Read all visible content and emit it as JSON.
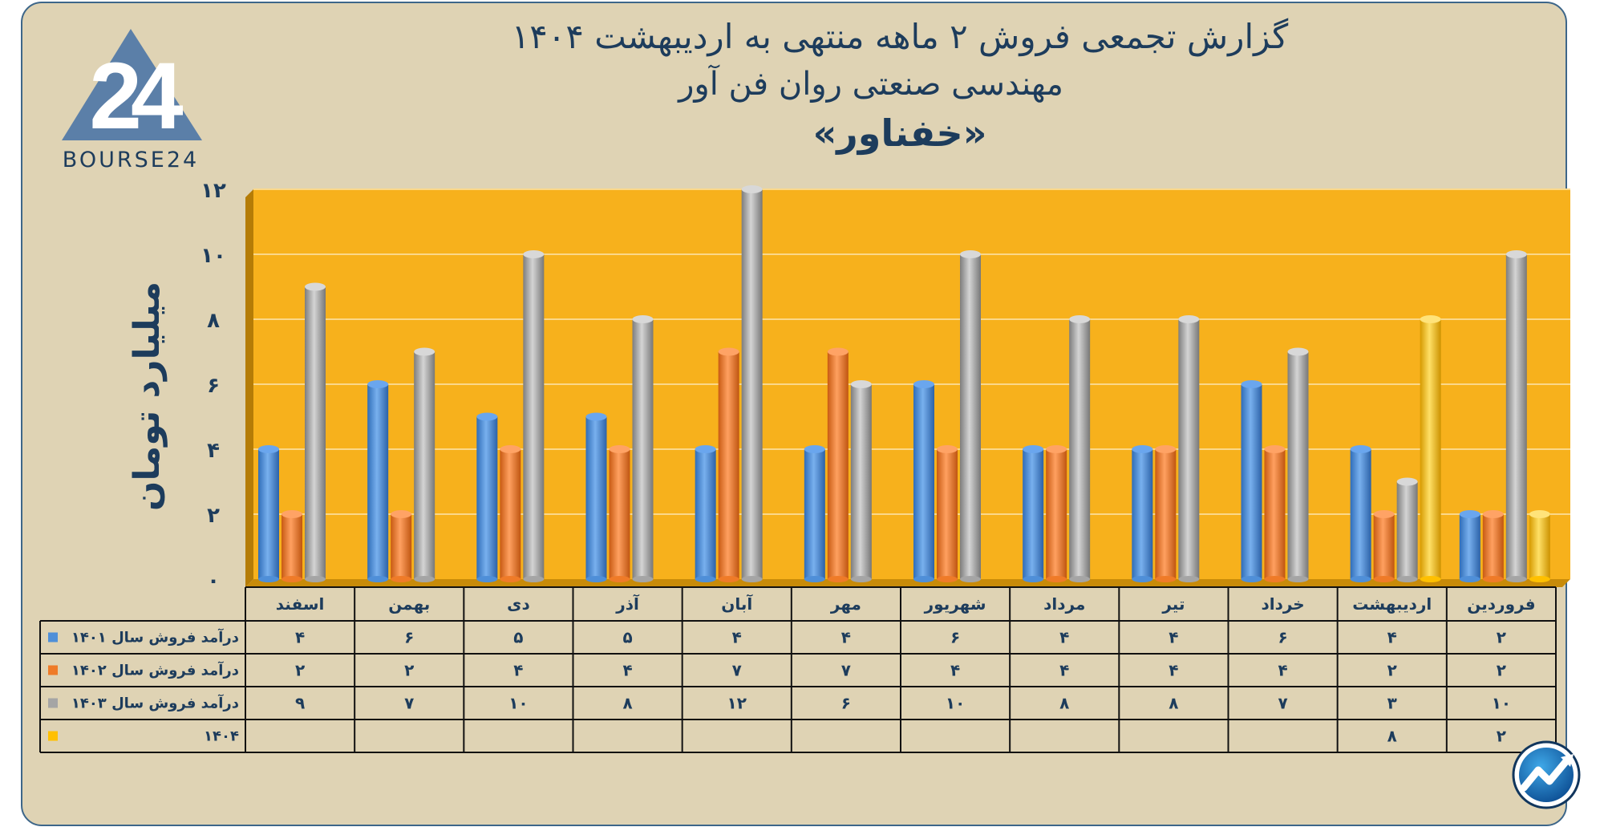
{
  "logo": {
    "text": "BOURSE24",
    "mark": "24"
  },
  "title": {
    "line1": "گزارش تجمعی فروش ۲ ماهه منتهی به اردیبهشت ۱۴۰۴",
    "line2": "مهندسی صنعتی روان فن آور",
    "line3": "«خفناور»"
  },
  "badge": {
    "icon": "trend-up-arrow-icon"
  },
  "colors": {
    "background": "#dfd3b4",
    "plot": "#f7b11c",
    "title": "#1d3c5c",
    "border": "#3d6689"
  },
  "chart_data": {
    "type": "bar",
    "ylabel": "میلیارد تومان",
    "ylim": [
      0,
      12
    ],
    "yticks": [
      0,
      2,
      4,
      6,
      8,
      10,
      12
    ],
    "ytick_labels": [
      "۰",
      "۲",
      "۴",
      "۶",
      "۸",
      "۱۰",
      "۱۲"
    ],
    "grid": true,
    "categories": [
      "فروردین",
      "اردیبهشت",
      "خرداد",
      "تیر",
      "مرداد",
      "شهریور",
      "مهر",
      "آبان",
      "آذر",
      "دی",
      "بهمن",
      "اسفند"
    ],
    "series": [
      {
        "name": "درآمد فروش سال ۱۴۰۱",
        "color": "#4f8fd8",
        "values": [
          2,
          4,
          6,
          4,
          4,
          6,
          4,
          4,
          5,
          5,
          6,
          4
        ],
        "labels": [
          "۲",
          "۴",
          "۶",
          "۴",
          "۴",
          "۶",
          "۴",
          "۴",
          "۵",
          "۵",
          "۶",
          "۴"
        ]
      },
      {
        "name": "درآمد فروش سال ۱۴۰۲",
        "color": "#ef7b28",
        "values": [
          2,
          2,
          4,
          4,
          4,
          4,
          7,
          7,
          4,
          4,
          2,
          2
        ],
        "labels": [
          "۲",
          "۲",
          "۴",
          "۴",
          "۴",
          "۴",
          "۷",
          "۷",
          "۴",
          "۴",
          "۲",
          "۲"
        ]
      },
      {
        "name": "درآمد فروش سال ۱۴۰۳",
        "color": "#a5a5a5",
        "values": [
          10,
          3,
          7,
          8,
          8,
          10,
          6,
          12,
          8,
          10,
          7,
          9
        ],
        "labels": [
          "۱۰",
          "۳",
          "۷",
          "۸",
          "۸",
          "۱۰",
          "۶",
          "۱۲",
          "۸",
          "۱۰",
          "۷",
          "۹"
        ]
      },
      {
        "name": "۱۴۰۴",
        "color": "#ffc000",
        "values": [
          2,
          8,
          null,
          null,
          null,
          null,
          null,
          null,
          null,
          null,
          null,
          null
        ],
        "labels": [
          "۲",
          "۸",
          "",
          "",
          "",
          "",
          "",
          "",
          "",
          "",
          "",
          ""
        ]
      }
    ]
  }
}
